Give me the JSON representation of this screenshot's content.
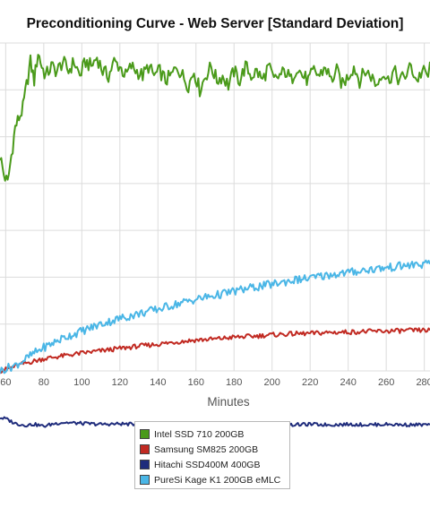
{
  "chart_data": {
    "type": "line",
    "title": "Preconditioning Curve - Web Server [Standard Deviation]",
    "xlabel": "Minutes",
    "ylabel": "",
    "xlim": [
      57,
      283
    ],
    "ylim": [
      0,
      7
    ],
    "x_ticks": [
      60,
      80,
      100,
      120,
      140,
      160,
      180,
      200,
      220,
      240,
      260,
      280
    ],
    "grid": true,
    "legend_position": "bottom",
    "series": [
      {
        "name": "Intel SSD 710 200GB",
        "color": "#4a9a1a",
        "points": [
          [
            57,
            4.6
          ],
          [
            59,
            4.2
          ],
          [
            61,
            4.0
          ],
          [
            63,
            4.6
          ],
          [
            65,
            5.2
          ],
          [
            67,
            5.4
          ],
          [
            69,
            5.6
          ],
          [
            71,
            6.1
          ],
          [
            73,
            6.6
          ],
          [
            75,
            6.2
          ],
          [
            77,
            6.8
          ],
          [
            79,
            6.5
          ],
          [
            81,
            6.3
          ],
          [
            84,
            6.5
          ],
          [
            87,
            6.4
          ],
          [
            90,
            6.6
          ],
          [
            93,
            6.4
          ],
          [
            96,
            6.6
          ],
          [
            99,
            6.3
          ],
          [
            102,
            6.6
          ],
          [
            105,
            6.5
          ],
          [
            108,
            6.7
          ],
          [
            111,
            6.4
          ],
          [
            114,
            6.3
          ],
          [
            117,
            6.6
          ],
          [
            120,
            6.5
          ],
          [
            123,
            6.3
          ],
          [
            126,
            6.5
          ],
          [
            129,
            6.4
          ],
          [
            132,
            6.3
          ],
          [
            135,
            6.5
          ],
          [
            138,
            6.3
          ],
          [
            141,
            6.4
          ],
          [
            144,
            6.2
          ],
          [
            147,
            6.3
          ],
          [
            150,
            6.5
          ],
          [
            153,
            6.3
          ],
          [
            156,
            6.1
          ],
          [
            159,
            6.4
          ],
          [
            162,
            6.0
          ],
          [
            165,
            6.3
          ],
          [
            168,
            6.5
          ],
          [
            171,
            6.2
          ],
          [
            174,
            6.3
          ],
          [
            177,
            6.1
          ],
          [
            180,
            6.4
          ],
          [
            183,
            6.2
          ],
          [
            186,
            6.5
          ],
          [
            189,
            6.3
          ],
          [
            192,
            6.4
          ],
          [
            195,
            6.2
          ],
          [
            198,
            6.5
          ],
          [
            201,
            6.2
          ],
          [
            204,
            6.3
          ],
          [
            207,
            6.4
          ],
          [
            210,
            6.2
          ],
          [
            213,
            6.5
          ],
          [
            216,
            6.3
          ],
          [
            219,
            6.2
          ],
          [
            222,
            6.4
          ],
          [
            225,
            6.3
          ],
          [
            228,
            6.5
          ],
          [
            231,
            6.2
          ],
          [
            234,
            6.4
          ],
          [
            237,
            6.1
          ],
          [
            240,
            6.3
          ],
          [
            243,
            6.5
          ],
          [
            246,
            6.2
          ],
          [
            249,
            6.4
          ],
          [
            252,
            6.3
          ],
          [
            255,
            6.1
          ],
          [
            258,
            6.4
          ],
          [
            261,
            6.2
          ],
          [
            264,
            6.4
          ],
          [
            267,
            6.2
          ],
          [
            270,
            6.3
          ],
          [
            273,
            6.5
          ],
          [
            276,
            6.2
          ],
          [
            279,
            6.4
          ],
          [
            282,
            6.3
          ],
          [
            283,
            6.6
          ]
        ]
      },
      {
        "name": "Samsung SM825 200GB",
        "color": "#c12a22",
        "points": [
          [
            57,
            0.0
          ],
          [
            60,
            0.03
          ],
          [
            65,
            0.1
          ],
          [
            70,
            0.16
          ],
          [
            75,
            0.21
          ],
          [
            80,
            0.26
          ],
          [
            90,
            0.32
          ],
          [
            100,
            0.38
          ],
          [
            110,
            0.43
          ],
          [
            120,
            0.48
          ],
          [
            130,
            0.53
          ],
          [
            140,
            0.57
          ],
          [
            150,
            0.62
          ],
          [
            160,
            0.66
          ],
          [
            170,
            0.68
          ],
          [
            180,
            0.72
          ],
          [
            190,
            0.74
          ],
          [
            200,
            0.77
          ],
          [
            210,
            0.79
          ],
          [
            220,
            0.8
          ],
          [
            230,
            0.82
          ],
          [
            240,
            0.83
          ],
          [
            250,
            0.84
          ],
          [
            260,
            0.85
          ],
          [
            270,
            0.86
          ],
          [
            283,
            0.87
          ]
        ]
      },
      {
        "name": "Hitachi SSD400M 400GB",
        "color": "#1f2c7c",
        "points": [
          [
            57,
            -1.0
          ],
          [
            60,
            -1.02
          ],
          [
            65,
            -1.12
          ],
          [
            70,
            -1.16
          ],
          [
            75,
            -1.14
          ],
          [
            80,
            -1.18
          ],
          [
            85,
            -1.13
          ],
          [
            90,
            -1.1
          ],
          [
            100,
            -1.12
          ],
          [
            110,
            -1.14
          ],
          [
            120,
            -1.13
          ],
          [
            130,
            -1.14
          ],
          [
            140,
            -1.13
          ],
          [
            150,
            -1.15
          ],
          [
            160,
            -1.14
          ],
          [
            170,
            -1.13
          ],
          [
            180,
            -1.14
          ],
          [
            190,
            -1.15
          ],
          [
            200,
            -1.14
          ],
          [
            210,
            -1.15
          ],
          [
            220,
            -1.14
          ],
          [
            230,
            -1.15
          ],
          [
            240,
            -1.14
          ],
          [
            250,
            -1.15
          ],
          [
            260,
            -1.14
          ],
          [
            270,
            -1.15
          ],
          [
            283,
            -1.15
          ]
        ]
      },
      {
        "name": "PureSi Kage K1 200GB eMLC",
        "color": "#4ab6e6",
        "points": [
          [
            57,
            0.0
          ],
          [
            60,
            0.05
          ],
          [
            65,
            0.12
          ],
          [
            70,
            0.24
          ],
          [
            75,
            0.38
          ],
          [
            80,
            0.5
          ],
          [
            90,
            0.7
          ],
          [
            100,
            0.85
          ],
          [
            110,
            1.0
          ],
          [
            120,
            1.12
          ],
          [
            130,
            1.22
          ],
          [
            140,
            1.32
          ],
          [
            150,
            1.43
          ],
          [
            160,
            1.53
          ],
          [
            170,
            1.61
          ],
          [
            180,
            1.7
          ],
          [
            190,
            1.78
          ],
          [
            200,
            1.85
          ],
          [
            210,
            1.93
          ],
          [
            220,
            1.98
          ],
          [
            230,
            2.05
          ],
          [
            240,
            2.1
          ],
          [
            250,
            2.16
          ],
          [
            260,
            2.2
          ],
          [
            270,
            2.25
          ],
          [
            283,
            2.28
          ]
        ]
      }
    ]
  }
}
